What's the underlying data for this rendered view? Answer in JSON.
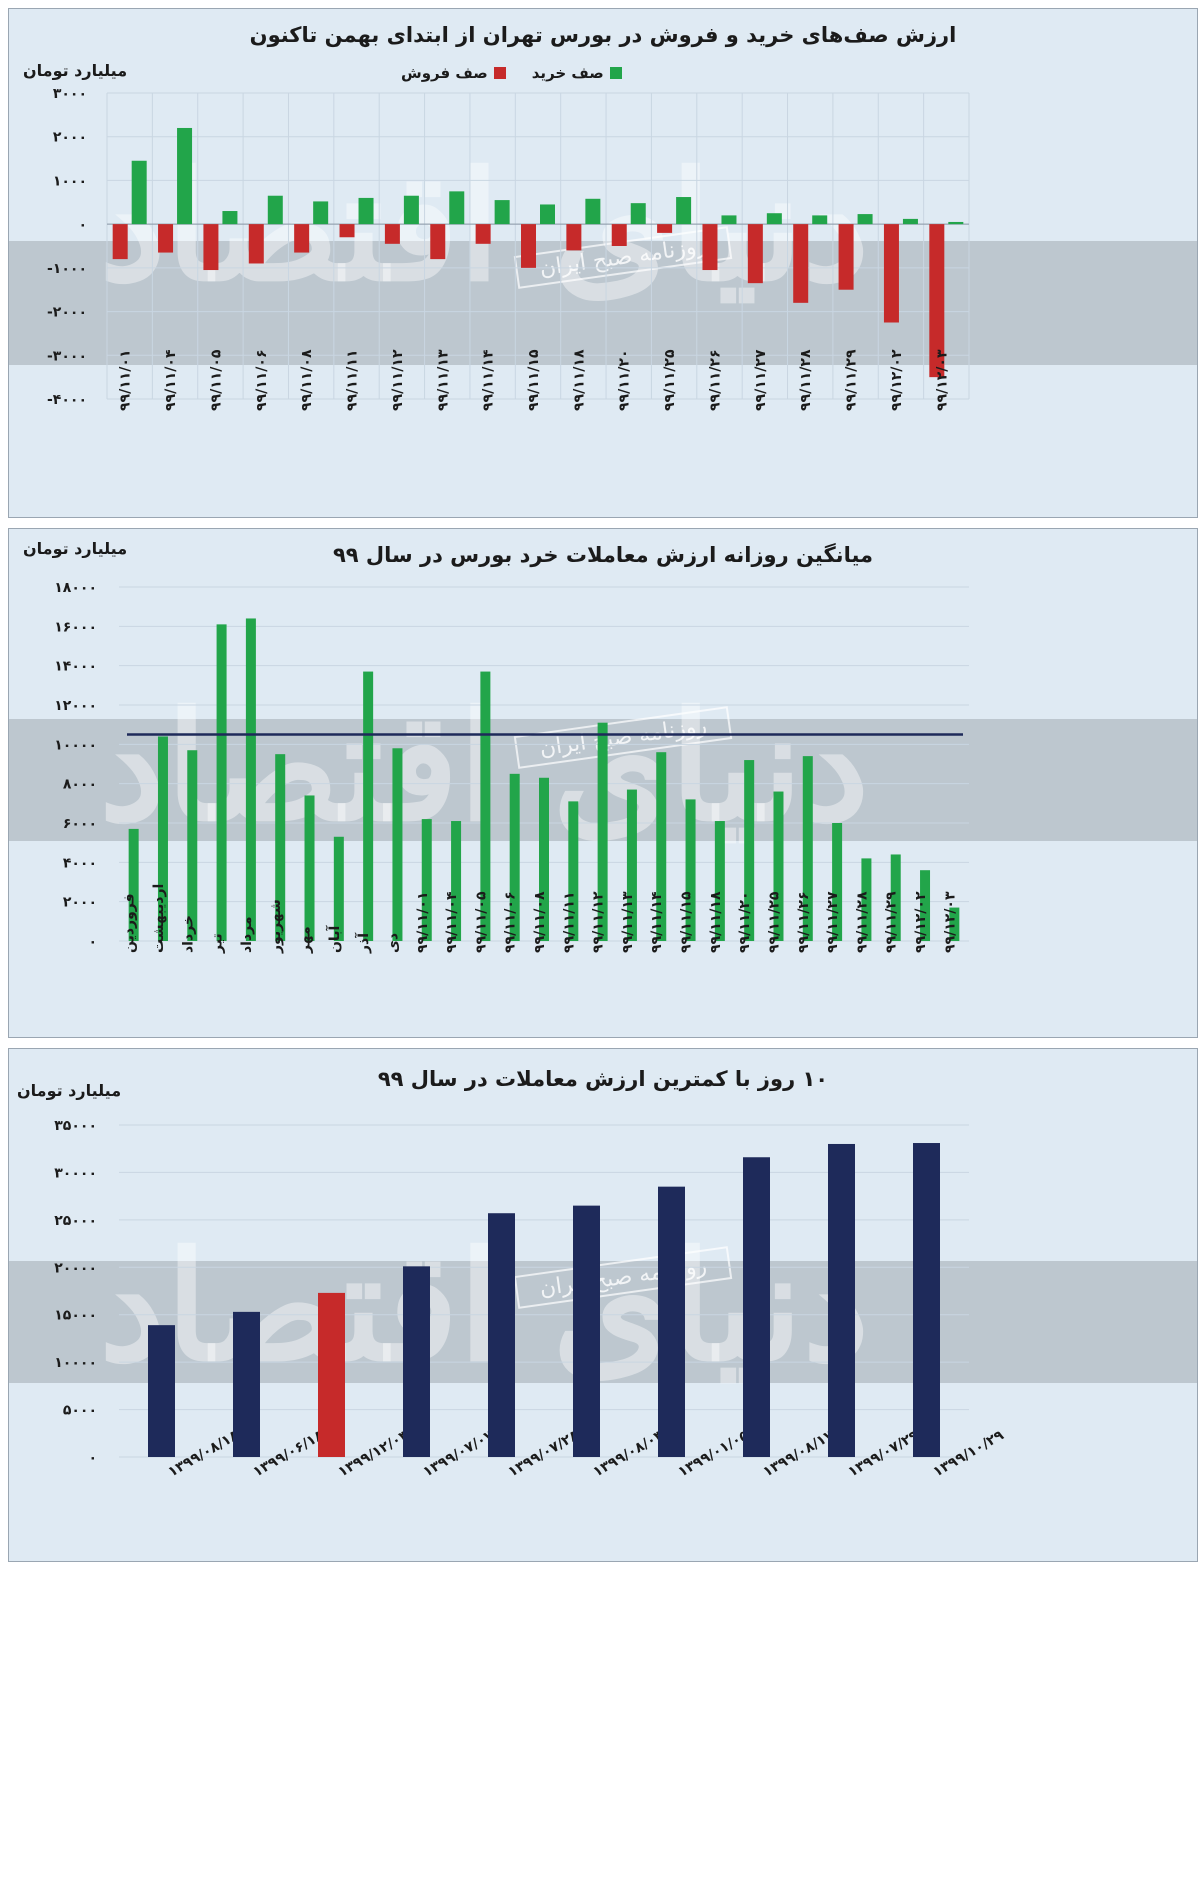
{
  "watermark": {
    "brand": "دنیای اقتصاد",
    "stamp": "روزنامه صبح ایران"
  },
  "panel1": {
    "title": "ارزش صف‌های خرید و فروش در بورس تهران از ابتدای بهمن تاکنون",
    "unit": "میلیارد تومان",
    "legend": {
      "buy": "صف خرید",
      "sell": "صف فروش"
    },
    "chart_data": {
      "type": "bar",
      "categories": [
        "۹۹/۱۱/۰۱",
        "۹۹/۱۱/۰۴",
        "۹۹/۱۱/۰۵",
        "۹۹/۱۱/۰۶",
        "۹۹/۱۱/۰۸",
        "۹۹/۱۱/۱۱",
        "۹۹/۱۱/۱۲",
        "۹۹/۱۱/۱۳",
        "۹۹/۱۱/۱۴",
        "۹۹/۱۱/۱۵",
        "۹۹/۱۱/۱۸",
        "۹۹/۱۱/۲۰",
        "۹۹/۱۱/۲۵",
        "۹۹/۱۱/۲۶",
        "۹۹/۱۱/۲۷",
        "۹۹/۱۱/۲۸",
        "۹۹/۱۱/۲۹",
        "۹۹/۱۲/۰۲",
        "۹۹/۱۲/۰۳"
      ],
      "series": [
        {
          "name": "صف خرید",
          "color": "#22a54a",
          "values": [
            1450,
            2200,
            300,
            650,
            520,
            600,
            650,
            750,
            550,
            450,
            580,
            480,
            620,
            200,
            250,
            200,
            230,
            120,
            50
          ]
        },
        {
          "name": "صف فروش",
          "color": "#c62a2a",
          "values": [
            -800,
            -650,
            -1050,
            -900,
            -650,
            -300,
            -450,
            -800,
            -450,
            -1000,
            -600,
            -500,
            -200,
            -1050,
            -1350,
            -1800,
            -1500,
            -2250,
            -3500
          ]
        }
      ],
      "ylim": [
        -4000,
        3000
      ],
      "yticks": [
        "-۴۰۰۰",
        "-۳۰۰۰",
        "-۲۰۰۰",
        "-۱۰۰۰",
        "۰",
        "۱۰۰۰",
        "۲۰۰۰",
        "۳۰۰۰"
      ],
      "ytick_values": [
        -4000,
        -3000,
        -2000,
        -1000,
        0,
        1000,
        2000,
        3000
      ],
      "grid": true
    }
  },
  "panel2": {
    "title": "میانگین روزانه ارزش معاملات خرد بورس در سال ۹۹",
    "unit": "میلیارد تومان",
    "chart_data": {
      "type": "bar",
      "categories": [
        "فروردین",
        "اردیبهشت",
        "خرداد",
        "تیر",
        "مرداد",
        "شهریور",
        "مهر",
        "آبان",
        "آذر",
        "دی",
        "۹۹/۱۱/۰۱",
        "۹۹/۱۱/۰۴",
        "۹۹/۱۱/۰۵",
        "۹۹/۱۱/۰۶",
        "۹۹/۱۱/۰۸",
        "۹۹/۱۱/۱۱",
        "۹۹/۱۱/۱۲",
        "۹۹/۱۱/۱۳",
        "۹۹/۱۱/۱۴",
        "۹۹/۱۱/۱۵",
        "۹۹/۱۱/۱۸",
        "۹۹/۱۱/۲۰",
        "۹۹/۱۱/۲۵",
        "۹۹/۱۱/۲۶",
        "۹۹/۱۱/۲۷",
        "۹۹/۱۱/۲۸",
        "۹۹/۱۱/۲۹",
        "۹۹/۱۲/۰۲",
        "۹۹/۱۲/۰۳"
      ],
      "values": [
        5700,
        10400,
        9700,
        16100,
        16400,
        9500,
        7400,
        5300,
        13700,
        9800,
        6200,
        6100,
        13700,
        8500,
        8300,
        7100,
        11100,
        7700,
        9600,
        7200,
        6100,
        9200,
        7600,
        9400,
        6000,
        4200,
        4400,
        3600,
        1700
      ],
      "average_line": 10500,
      "ylim": [
        0,
        18000
      ],
      "yticks": [
        "۰",
        "۲۰۰۰",
        "۴۰۰۰",
        "۶۰۰۰",
        "۸۰۰۰",
        "۱۰۰۰۰",
        "۱۲۰۰۰",
        "۱۴۰۰۰",
        "۱۶۰۰۰",
        "۱۸۰۰۰"
      ],
      "ytick_values": [
        0,
        2000,
        4000,
        6000,
        8000,
        10000,
        12000,
        14000,
        16000,
        18000
      ],
      "grid": true,
      "bar_color": "#22a54a",
      "line_color": "#1e2a5a"
    }
  },
  "panel3": {
    "title": "۱۰ روز با کمترین ارزش معاملات در سال ۹۹",
    "unit": "میلیارد تومان",
    "chart_data": {
      "type": "bar",
      "categories": [
        "۱۳۹۹/۰۸/۱۸",
        "۱۳۹۹/۰۶/۱۸",
        "۱۳۹۹/۱۲/۰۳",
        "۱۳۹۹/۰۷/۰۷",
        "۱۳۹۹/۰۷/۲۸",
        "۱۳۹۹/۰۸/۰۳",
        "۱۳۹۹/۰۱/۰۵",
        "۱۳۹۹/۰۸/۱۷",
        "۱۳۹۹/۰۷/۲۹",
        "۱۳۹۹/۱۰/۲۹"
      ],
      "values": [
        13900,
        15300,
        17300,
        20100,
        25700,
        26500,
        28500,
        31600,
        33000,
        33100
      ],
      "highlight_index": 2,
      "ylim": [
        0,
        35000
      ],
      "yticks": [
        "۰",
        "۵۰۰۰",
        "۱۰۰۰۰",
        "۱۵۰۰۰",
        "۲۰۰۰۰",
        "۲۵۰۰۰",
        "۳۰۰۰۰",
        "۳۵۰۰۰"
      ],
      "ytick_values": [
        0,
        5000,
        10000,
        15000,
        20000,
        25000,
        30000,
        35000
      ],
      "grid": true,
      "bar_color": "#1e2a5a",
      "highlight_color": "#c62a2a"
    }
  }
}
